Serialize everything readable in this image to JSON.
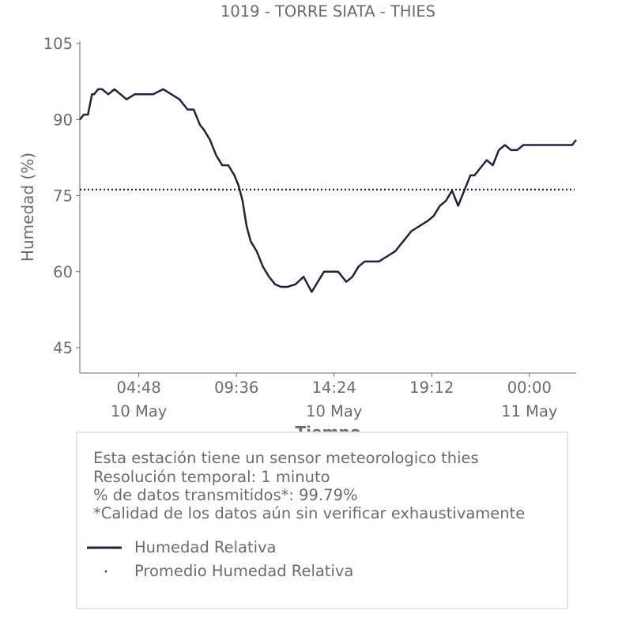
{
  "chart_data": {
    "type": "line",
    "title": "1019 - TORRE SIATA - THIES",
    "xlabel": "Tiempo",
    "ylabel": "Humedad (%)",
    "x_start_hours": 1.9,
    "x_end_hours": 26.3,
    "yticks": [
      45,
      60,
      75,
      90,
      105
    ],
    "xticks": [
      {
        "hours": 4.8,
        "time": "04:48",
        "date": "10 May"
      },
      {
        "hours": 9.6,
        "time": "09:36",
        "date": ""
      },
      {
        "hours": 14.4,
        "time": "14:24",
        "date": "10 May"
      },
      {
        "hours": 19.2,
        "time": "19:12",
        "date": ""
      },
      {
        "hours": 24.0,
        "time": "00:00",
        "date": "11 May"
      }
    ],
    "ylim": [
      40,
      105.5
    ],
    "average": 76.2,
    "series": [
      {
        "name": "Humedad Relativa",
        "color": "#22223f",
        "x": [
          1.9,
          2.1,
          2.3,
          2.5,
          2.6,
          2.8,
          3.0,
          3.3,
          3.6,
          3.9,
          4.2,
          4.6,
          5.0,
          5.5,
          6.0,
          6.4,
          6.8,
          7.2,
          7.5,
          7.8,
          8.0,
          8.3,
          8.6,
          8.9,
          9.2,
          9.5,
          9.7,
          9.9,
          10.1,
          10.3,
          10.6,
          10.9,
          11.2,
          11.5,
          11.8,
          12.1,
          12.5,
          12.9,
          13.3,
          13.6,
          13.9,
          14.2,
          14.6,
          15.0,
          15.3,
          15.6,
          15.9,
          16.2,
          16.6,
          17.0,
          17.4,
          17.8,
          18.2,
          18.6,
          19.0,
          19.3,
          19.6,
          19.9,
          20.2,
          20.5,
          20.8,
          21.1,
          21.3,
          21.5,
          21.7,
          21.9,
          22.2,
          22.5,
          22.8,
          23.1,
          23.4,
          23.7,
          24.0,
          24.3,
          24.6,
          25.0,
          25.4,
          25.8,
          26.1,
          26.3
        ],
        "y": [
          90,
          91,
          91,
          95,
          95,
          96,
          96,
          95,
          96,
          95,
          94,
          95,
          95,
          95,
          96,
          95,
          94,
          92,
          92,
          89,
          88,
          86,
          83,
          81,
          81,
          79,
          77,
          74,
          69,
          66,
          64,
          61,
          59,
          57.5,
          57,
          57,
          57.5,
          59,
          56,
          58,
          60,
          60,
          60,
          58,
          59,
          61,
          62,
          62,
          62,
          63,
          64,
          66,
          68,
          69,
          70,
          71,
          73,
          74,
          76,
          73,
          76,
          79,
          79,
          80,
          81,
          82,
          81,
          84,
          85,
          84,
          84,
          85,
          85,
          85,
          85,
          85,
          85,
          85,
          85,
          86
        ]
      }
    ],
    "average_series_name": "Promedio Humedad Relativa",
    "average_color": "#22223f",
    "axis_color": "#6b6b6b"
  },
  "info": {
    "lines": [
      "Esta estación tiene un sensor meteorologico thies",
      "Resolución temporal: 1 minuto",
      "% de datos transmitidos*: 99.79%",
      "*Calidad de los datos aún sin verificar exhaustivamente"
    ]
  },
  "legend": [
    {
      "label": "Humedad Relativa",
      "style": "solid"
    },
    {
      "label": "Promedio Humedad Relativa",
      "style": "dotted"
    }
  ]
}
